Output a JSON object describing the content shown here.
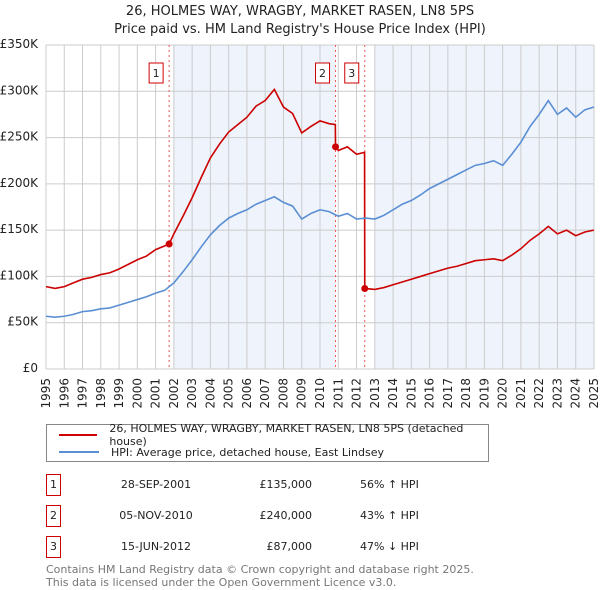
{
  "chart_data": {
    "type": "line",
    "title": "26, HOLMES WAY, WRAGBY, MARKET RASEN, LN8 5PS",
    "subtitle": "Price paid vs. HM Land Registry's House Price Index (HPI)",
    "xlim": [
      1995,
      2025
    ],
    "ylim": [
      0,
      350000
    ],
    "x_ticks": [
      "1995",
      "1996",
      "1997",
      "1998",
      "1999",
      "2000",
      "2001",
      "2002",
      "2003",
      "2004",
      "2005",
      "2006",
      "2007",
      "2008",
      "2009",
      "2010",
      "2011",
      "2012",
      "2013",
      "2014",
      "2015",
      "2016",
      "2017",
      "2018",
      "2019",
      "2020",
      "2021",
      "2022",
      "2023",
      "2024",
      "2025"
    ],
    "y_ticks": [
      {
        "v": 0,
        "label": "£0"
      },
      {
        "v": 50000,
        "label": "£50K"
      },
      {
        "v": 100000,
        "label": "£100K"
      },
      {
        "v": 150000,
        "label": "£150K"
      },
      {
        "v": 200000,
        "label": "£200K"
      },
      {
        "v": 250000,
        "label": "£250K"
      },
      {
        "v": 300000,
        "label": "£300K"
      },
      {
        "v": 350000,
        "label": "£350K"
      }
    ],
    "grid": true,
    "shaded_ranges": [
      [
        2002.0,
        2010.85
      ],
      [
        2013.0,
        2025
      ]
    ],
    "series": [
      {
        "name": "26, HOLMES WAY, WRAGBY, MARKET RASEN, LN8 5PS (detached house)",
        "color": "#cc0000",
        "x": [
          1995,
          1995.5,
          1996,
          1996.5,
          1997,
          1997.5,
          1998,
          1998.5,
          1999,
          1999.5,
          2000,
          2000.5,
          2001,
          2001.5,
          2001.74,
          2002,
          2002.5,
          2003,
          2003.5,
          2004,
          2004.5,
          2005,
          2005.5,
          2006,
          2006.5,
          2007,
          2007.5,
          2008,
          2008.5,
          2009,
          2009.5,
          2010,
          2010.5,
          2010.84,
          2010.85,
          2011,
          2011.5,
          2012,
          2012.44,
          2012.45,
          2013,
          2013.5,
          2014,
          2014.5,
          2015,
          2015.5,
          2016,
          2016.5,
          2017,
          2017.5,
          2018,
          2018.5,
          2019,
          2019.5,
          2020,
          2020.5,
          2021,
          2021.5,
          2022,
          2022.5,
          2023,
          2023.5,
          2024,
          2024.5,
          2025
        ],
        "y": [
          89000,
          87000,
          89000,
          93000,
          97000,
          99000,
          102000,
          104000,
          108000,
          113000,
          118000,
          122000,
          129000,
          133000,
          135000,
          146000,
          165000,
          185000,
          207000,
          228000,
          243000,
          256000,
          264000,
          272000,
          284000,
          290000,
          302000,
          283000,
          276000,
          255000,
          262000,
          268000,
          265000,
          264000,
          240000,
          236000,
          240000,
          232000,
          234000,
          87000,
          86000,
          88000,
          91000,
          94000,
          97000,
          100000,
          103000,
          106000,
          109000,
          111000,
          114000,
          117000,
          118000,
          119000,
          117000,
          123000,
          130000,
          139000,
          146000,
          154000,
          146000,
          150000,
          144000,
          148000,
          150000
        ]
      },
      {
        "name": "HPI: Average price, detached house, East Lindsey",
        "color": "#5b8fd4",
        "x": [
          1995,
          1995.5,
          1996,
          1996.5,
          1997,
          1997.5,
          1998,
          1998.5,
          1999,
          1999.5,
          2000,
          2000.5,
          2001,
          2001.5,
          2002,
          2002.5,
          2003,
          2003.5,
          2004,
          2004.5,
          2005,
          2005.5,
          2006,
          2006.5,
          2007,
          2007.5,
          2008,
          2008.5,
          2009,
          2009.5,
          2010,
          2010.5,
          2011,
          2011.5,
          2012,
          2012.5,
          2013,
          2013.5,
          2014,
          2014.5,
          2015,
          2015.5,
          2016,
          2016.5,
          2017,
          2017.5,
          2018,
          2018.5,
          2019,
          2019.5,
          2020,
          2020.5,
          2021,
          2021.5,
          2022,
          2022.5,
          2023,
          2023.5,
          2024,
          2024.5,
          2025
        ],
        "y": [
          57000,
          56000,
          57000,
          59000,
          62000,
          63000,
          65000,
          66000,
          69000,
          72000,
          75000,
          78000,
          82000,
          85000,
          93000,
          105000,
          118000,
          132000,
          145000,
          155000,
          163000,
          168000,
          172000,
          178000,
          182000,
          186000,
          180000,
          176000,
          162000,
          168000,
          172000,
          170000,
          165000,
          168000,
          162000,
          163000,
          162000,
          166000,
          172000,
          178000,
          182000,
          188000,
          195000,
          200000,
          205000,
          210000,
          215000,
          220000,
          222000,
          225000,
          220000,
          232000,
          245000,
          262000,
          275000,
          290000,
          275000,
          282000,
          272000,
          280000,
          283000
        ]
      }
    ],
    "sales": [
      {
        "label": "1",
        "x": 2001.74,
        "y": 135000,
        "date": "28-SEP-2001",
        "price": "£135,000",
        "hpi": "56% ↑ HPI"
      },
      {
        "label": "2",
        "x": 2010.85,
        "y": 240000,
        "date": "05-NOV-2010",
        "price": "£240,000",
        "hpi": "43% ↑ HPI"
      },
      {
        "label": "3",
        "x": 2012.45,
        "y": 87000,
        "date": "15-JUN-2012",
        "price": "£87,000",
        "hpi": "47% ↓ HPI"
      }
    ]
  },
  "legend": {
    "red": "26, HOLMES WAY, WRAGBY, MARKET RASEN, LN8 5PS (detached house)",
    "blue": "HPI: Average price, detached house, East Lindsey"
  },
  "footer": {
    "line1": "Contains HM Land Registry data © Crown copyright and database right 2025.",
    "line2": "This data is licensed under the Open Government Licence v3.0."
  }
}
